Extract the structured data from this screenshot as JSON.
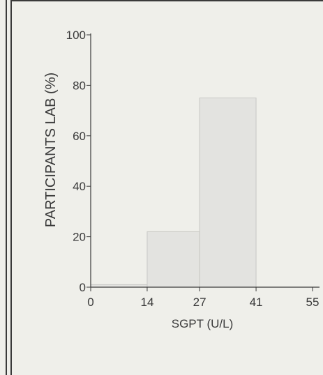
{
  "chart_data": {
    "type": "bar",
    "ylabel": "PARTICIPANTS LAB (%)",
    "xlabel": "SGPT (U/L)",
    "x_ticks": [
      "0",
      "14",
      "27",
      "41",
      "55"
    ],
    "y_ticks": [
      "0",
      "20",
      "40",
      "60",
      "80",
      "100"
    ],
    "ylim": [
      0,
      100
    ],
    "xlim": [
      0,
      55
    ],
    "bins": [
      {
        "from": 0,
        "to": 14,
        "value": 1
      },
      {
        "from": 14,
        "to": 27,
        "value": 22
      },
      {
        "from": 27,
        "to": 41,
        "value": 75
      },
      {
        "from": 41,
        "to": 55,
        "value": 0
      }
    ],
    "bar_color": "#e3e3e0",
    "grid": false
  }
}
